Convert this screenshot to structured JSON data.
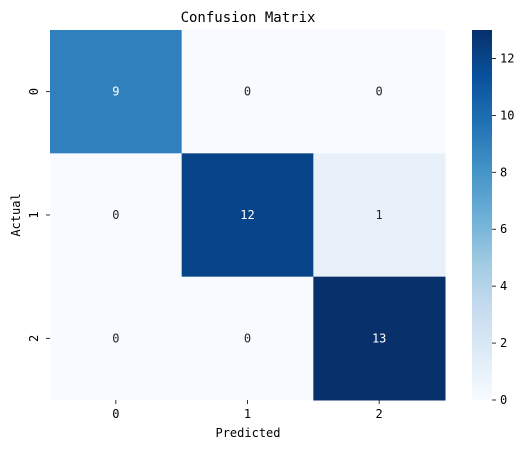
{
  "chart_data": {
    "type": "heatmap",
    "title": "Confusion Matrix",
    "xlabel": "Predicted",
    "ylabel": "Actual",
    "x_categories": [
      "0",
      "1",
      "2"
    ],
    "y_categories": [
      "0",
      "1",
      "2"
    ],
    "values": [
      [
        9,
        0,
        0
      ],
      [
        0,
        12,
        1
      ],
      [
        0,
        0,
        13
      ]
    ],
    "colormap": "Blues",
    "vmin": 0,
    "vmax": 13,
    "colorbar_ticks": [
      "0",
      "2",
      "4",
      "6",
      "8",
      "10",
      "12"
    ]
  }
}
